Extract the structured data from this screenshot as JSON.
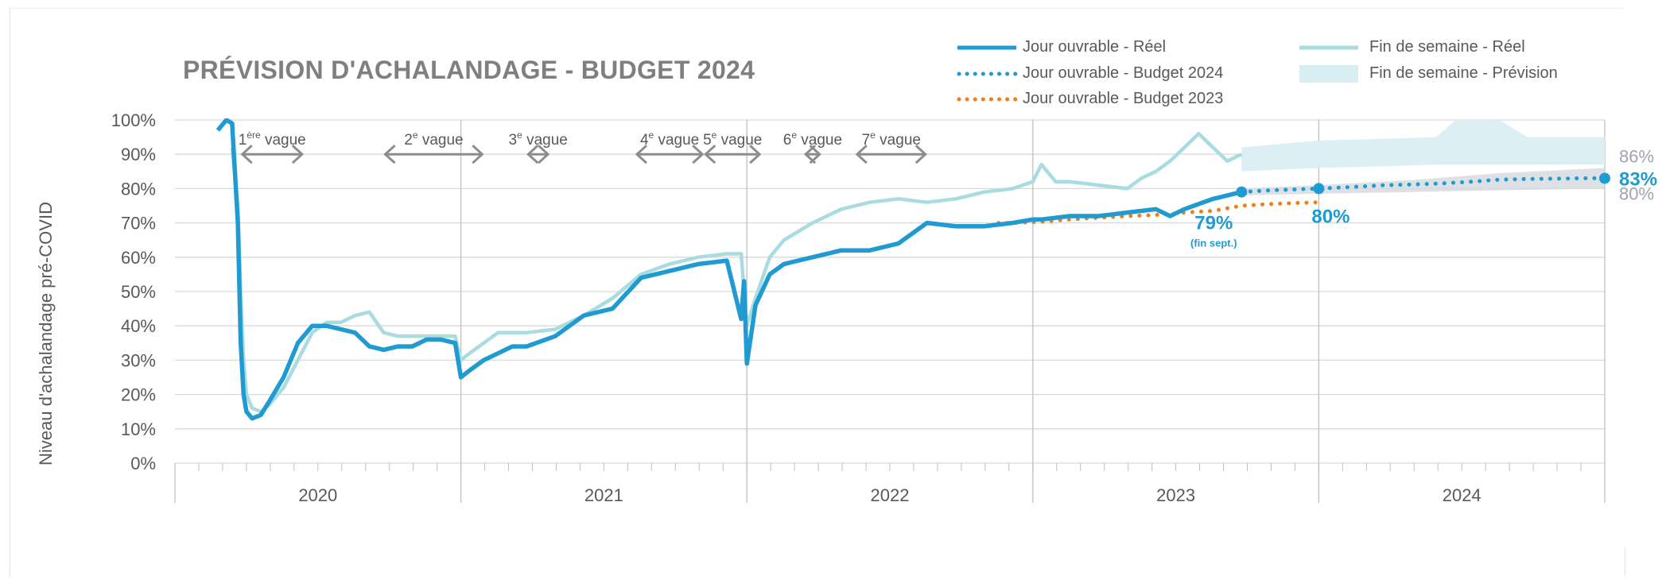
{
  "chart_data": {
    "type": "line",
    "title": "PRÉVISION D'ACHALANDAGE - BUDGET 2024",
    "ylabel": "Niveau d'achalandage pré-COVID",
    "xlabel": "",
    "ylim": [
      0,
      100
    ],
    "yticks": [
      "0%",
      "10%",
      "20%",
      "30%",
      "40%",
      "50%",
      "60%",
      "70%",
      "80%",
      "90%",
      "100%"
    ],
    "x_range": [
      2019.97,
      2024.97
    ],
    "year_labels": [
      {
        "label": "2020",
        "x": 2020.47
      },
      {
        "label": "2021",
        "x": 2021.47
      },
      {
        "label": "2022",
        "x": 2022.47
      },
      {
        "label": "2023",
        "x": 2023.47
      },
      {
        "label": "2024",
        "x": 2024.47
      }
    ],
    "year_boundaries": [
      2020.97,
      2021.97,
      2022.97,
      2023.97
    ],
    "legend": [
      {
        "label": "Jour ouvrable - Réel",
        "style": "solid-dark"
      },
      {
        "label": "Jour ouvrable - Budget 2024",
        "style": "dotted-blue"
      },
      {
        "label": "Jour ouvrable - Budget 2023",
        "style": "dotted-orange"
      },
      {
        "label": "Fin de semaine - Réel",
        "style": "solid-light"
      },
      {
        "label": "Fin de semaine - Prévision",
        "style": "band"
      }
    ],
    "colors": {
      "weekday_actual": "#1f9bd1",
      "weekday_budget_2024": "#1f9bd1",
      "weekday_budget_2023": "#f07f1a",
      "weekend_actual": "#a8dcdf",
      "weekend_forecast_band": "#d9eef3",
      "weekday_band": "#d5d9de",
      "waves": "#8c8c8c",
      "grid": "#d9d9d9"
    },
    "series": [
      {
        "name": "Jour ouvrable - Réel",
        "x": [
          2020.12,
          2020.15,
          2020.17,
          2020.19,
          2020.2,
          2020.21,
          2020.22,
          2020.24,
          2020.27,
          2020.3,
          2020.35,
          2020.4,
          2020.45,
          2020.5,
          2020.55,
          2020.6,
          2020.65,
          2020.7,
          2020.75,
          2020.8,
          2020.85,
          2020.9,
          2020.95,
          2020.97,
          2021.0,
          2021.05,
          2021.1,
          2021.15,
          2021.2,
          2021.3,
          2021.4,
          2021.5,
          2021.6,
          2021.7,
          2021.8,
          2021.9,
          2021.95,
          2021.96,
          2021.97,
          2022.0,
          2022.05,
          2022.1,
          2022.15,
          2022.2,
          2022.3,
          2022.4,
          2022.5,
          2022.6,
          2022.7,
          2022.8,
          2022.9,
          2022.97,
          2023.0,
          2023.1,
          2023.2,
          2023.3,
          2023.4,
          2023.45,
          2023.5,
          2023.6,
          2023.7
        ],
        "values": [
          97,
          100,
          99,
          70,
          35,
          20,
          15,
          13,
          14,
          18,
          25,
          35,
          40,
          40,
          39,
          38,
          34,
          33,
          34,
          34,
          36,
          36,
          35,
          25,
          27,
          30,
          32,
          34,
          34,
          37,
          43,
          45,
          54,
          56,
          58,
          59,
          42,
          53,
          29,
          46,
          55,
          58,
          59,
          60,
          62,
          62,
          64,
          70,
          69,
          69,
          70,
          71,
          71,
          72,
          72,
          73,
          74,
          72,
          74,
          77,
          79
        ]
      },
      {
        "name": "Fin de semaine - Réel",
        "x": [
          2020.17,
          2020.19,
          2020.2,
          2020.21,
          2020.22,
          2020.24,
          2020.27,
          2020.3,
          2020.35,
          2020.4,
          2020.45,
          2020.5,
          2020.55,
          2020.6,
          2020.65,
          2020.7,
          2020.75,
          2020.8,
          2020.85,
          2020.9,
          2020.95,
          2020.97,
          2021.0,
          2021.05,
          2021.1,
          2021.2,
          2021.3,
          2021.4,
          2021.5,
          2021.6,
          2021.7,
          2021.8,
          2021.9,
          2021.95,
          2021.97,
          2022.0,
          2022.05,
          2022.1,
          2022.2,
          2022.3,
          2022.4,
          2022.5,
          2022.6,
          2022.7,
          2022.8,
          2022.9,
          2022.97,
          2023.0,
          2023.05,
          2023.1,
          2023.2,
          2023.3,
          2023.35,
          2023.4,
          2023.45,
          2023.5,
          2023.55,
          2023.6,
          2023.65,
          2023.7
        ],
        "values": [
          92,
          75,
          50,
          30,
          20,
          16,
          15,
          17,
          22,
          30,
          38,
          41,
          41,
          43,
          44,
          38,
          37,
          37,
          37,
          37,
          37,
          30,
          32,
          35,
          38,
          38,
          39,
          43,
          48,
          55,
          58,
          60,
          61,
          61,
          40,
          48,
          60,
          65,
          70,
          74,
          76,
          77,
          76,
          77,
          79,
          80,
          82,
          87,
          82,
          82,
          81,
          80,
          83,
          85,
          88,
          92,
          96,
          92,
          88,
          90
        ]
      },
      {
        "name": "Jour ouvrable - Budget 2024",
        "x": [
          2023.7,
          2023.8,
          2023.9,
          2023.97,
          2024.1,
          2024.2,
          2024.3,
          2024.4,
          2024.5,
          2024.6,
          2024.7,
          2024.8,
          2024.9,
          2024.97
        ],
        "values": [
          79,
          79.5,
          79.8,
          80,
          80.5,
          81,
          81.2,
          81.5,
          82,
          82.6,
          82.8,
          82.9,
          83,
          83
        ]
      },
      {
        "name": "Jour ouvrable - Budget 2023",
        "x": [
          2022.85,
          2022.9,
          2023.0,
          2023.1,
          2023.2,
          2023.3,
          2023.4,
          2023.5,
          2023.6,
          2023.7,
          2023.8,
          2023.9,
          2023.97
        ],
        "values": [
          70,
          70,
          70.3,
          71,
          71.5,
          72,
          72.3,
          73,
          73.5,
          75,
          75.5,
          75.8,
          76
        ]
      }
    ],
    "bands": [
      {
        "name": "Fin de semaine - Prévision",
        "x": [
          2023.7,
          2023.97,
          2024.2,
          2024.38,
          2024.45,
          2024.6,
          2024.7,
          2024.8,
          2024.97
        ],
        "upper": [
          92,
          94,
          94.5,
          95,
          100,
          100,
          95,
          95,
          95
        ],
        "lower": [
          85,
          86,
          86.5,
          87,
          87,
          87,
          87,
          87,
          87
        ]
      },
      {
        "name": "",
        "x": [
          2023.7,
          2023.97,
          2024.3,
          2024.6,
          2024.97
        ],
        "upper": [
          80,
          81,
          82.5,
          84.5,
          86
        ],
        "lower": [
          78,
          78.5,
          79,
          79.5,
          80
        ]
      }
    ],
    "waves": [
      {
        "label_base": "1",
        "label_sup": "ère",
        "label_rest": " vague",
        "start": 2020.2,
        "end": 2020.42
      },
      {
        "label_base": "2",
        "label_sup": "e",
        "label_rest": " vague",
        "start": 2020.7,
        "end": 2021.05
      },
      {
        "label_base": "3",
        "label_sup": "e",
        "label_rest": " vague",
        "start": 2021.2,
        "end": 2021.28
      },
      {
        "label_base": "4",
        "label_sup": "e",
        "label_rest": " vague",
        "start": 2021.58,
        "end": 2021.82
      },
      {
        "label_base": "5",
        "label_sup": "e",
        "label_rest": " vague",
        "start": 2021.82,
        "end": 2022.02
      },
      {
        "label_base": "6",
        "label_sup": "e",
        "label_rest": " vague",
        "start": 2022.17,
        "end": 2022.23
      },
      {
        "label_base": "7",
        "label_sup": "e",
        "label_rest": " vague",
        "start": 2022.35,
        "end": 2022.6
      }
    ],
    "annotations": [
      {
        "text": "79%",
        "x": 2023.7,
        "y": 79,
        "subtext": "(fin sept.)"
      },
      {
        "text": "80%",
        "x": 2023.97,
        "y": 80
      },
      {
        "text": "83%",
        "x": 2024.97,
        "y": 83
      },
      {
        "text": "86%",
        "x": 2024.97,
        "y": 86
      },
      {
        "text": "80%",
        "x": 2024.97,
        "y": 80
      }
    ]
  }
}
